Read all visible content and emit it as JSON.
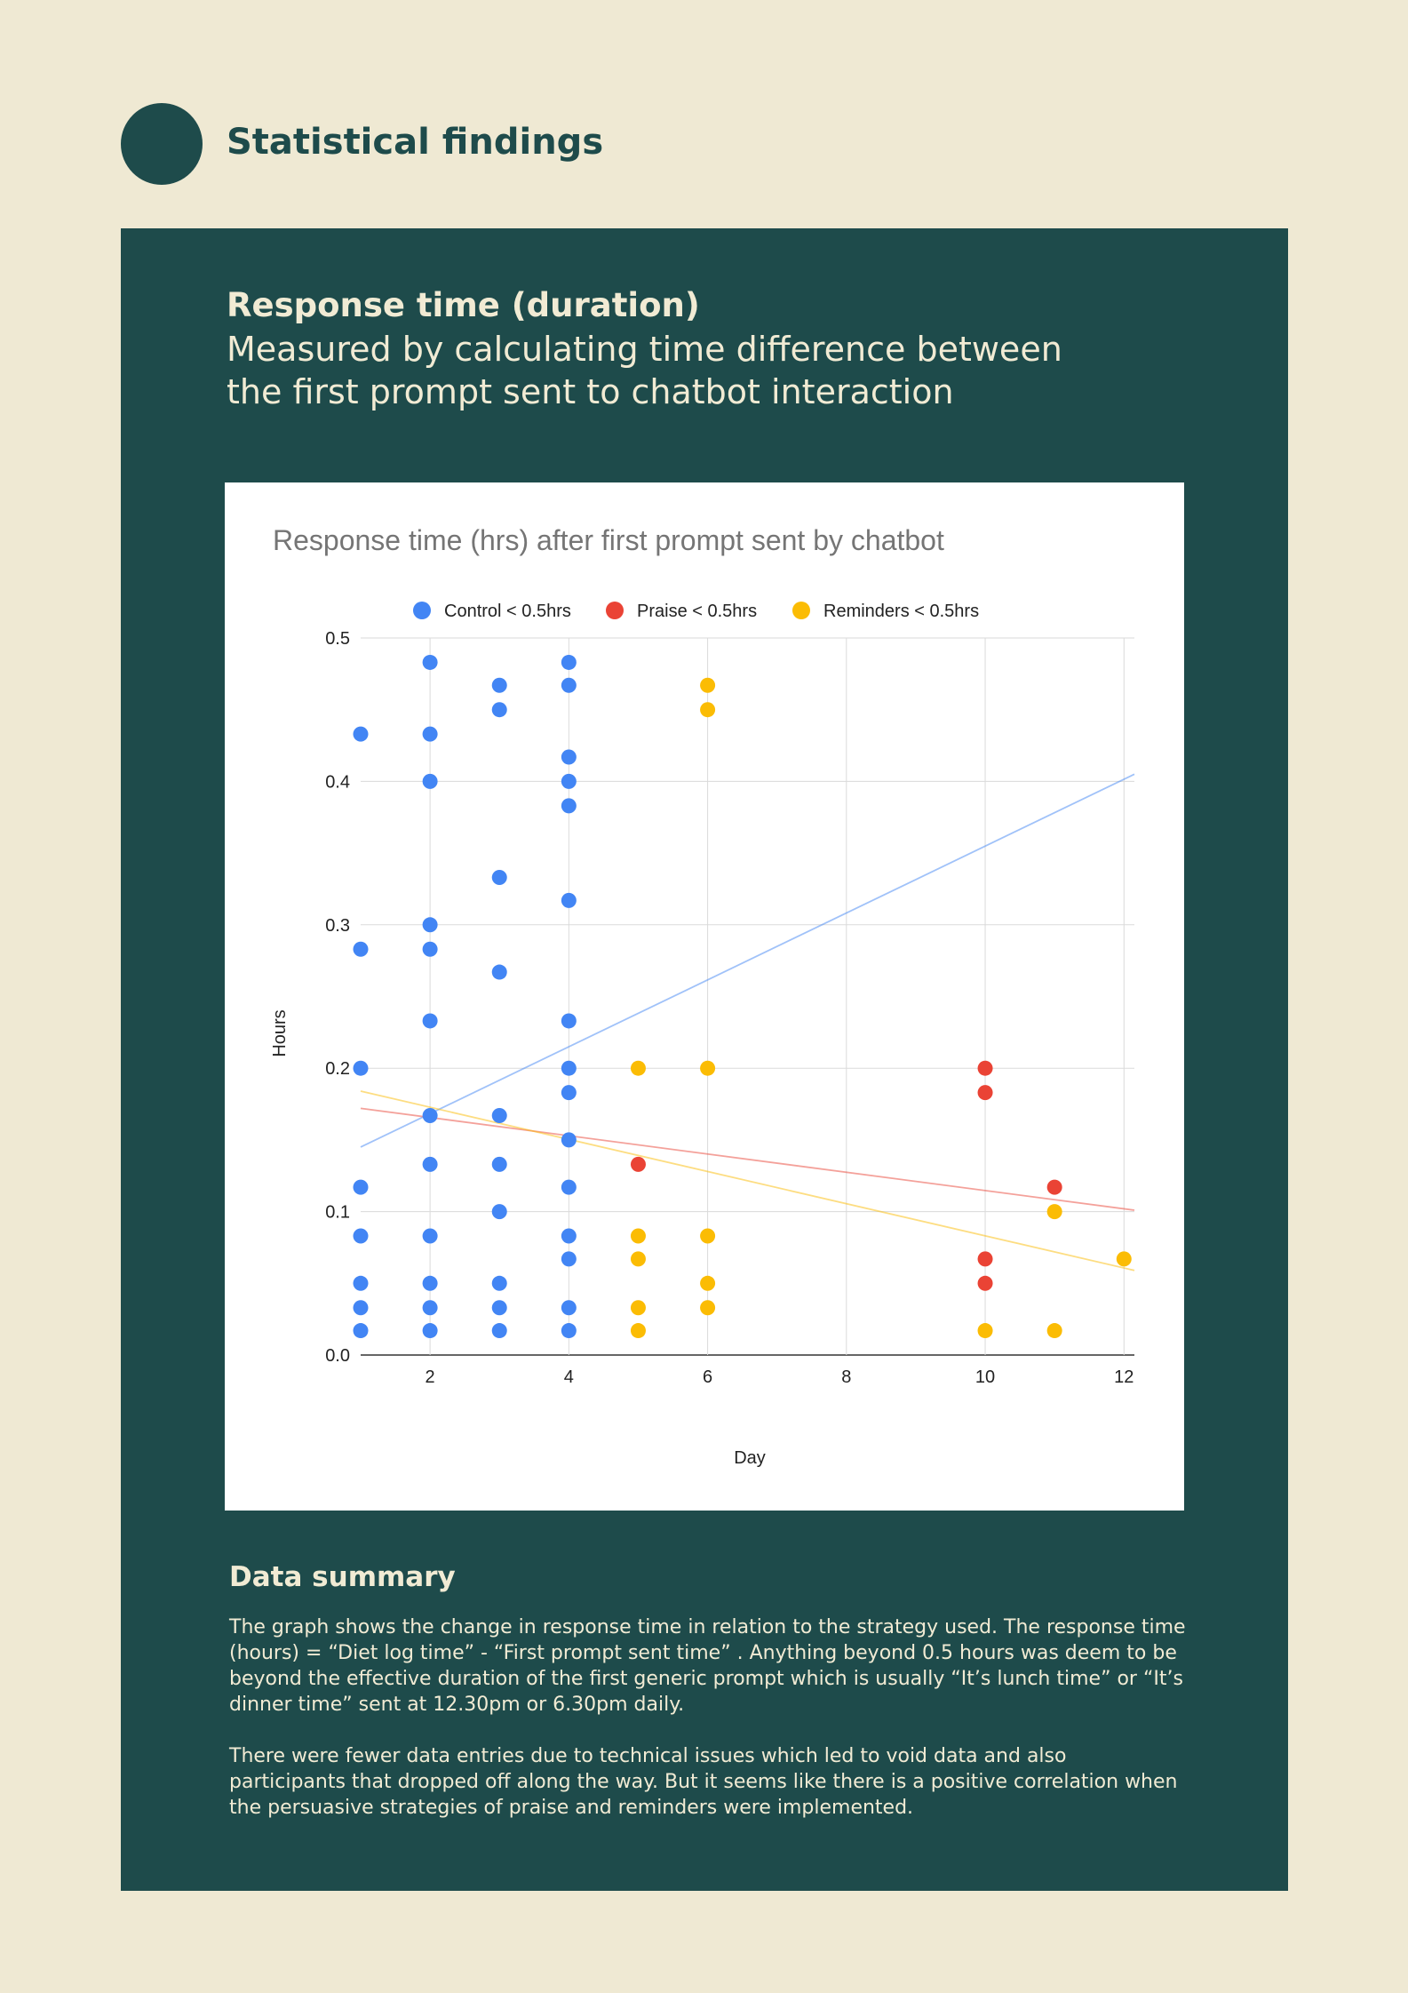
{
  "header": {
    "title": "Statistical findings"
  },
  "section": {
    "title": "Response time (duration)",
    "subtitle": "Measured by calculating time difference between the first prompt sent to chatbot interaction"
  },
  "chart_data": {
    "type": "scatter",
    "title": "Response time (hrs) after first prompt sent by chatbot",
    "xlabel": "Day",
    "ylabel": "Hours",
    "xlim": [
      1,
      12.15
    ],
    "ylim": [
      0,
      0.5
    ],
    "xticks": [
      2,
      4,
      6,
      8,
      10,
      12
    ],
    "yticks": [
      0.0,
      0.1,
      0.2,
      0.3,
      0.4,
      0.5
    ],
    "tick_labels_x": [
      "2",
      "4",
      "6",
      "8",
      "10",
      "12"
    ],
    "tick_labels_y": [
      "0.0",
      "0.1",
      "0.2",
      "0.3",
      "0.4",
      "0.5"
    ],
    "grid": true,
    "legend_position": "top",
    "series": [
      {
        "name": "Control < 0.5hrs",
        "color": "#4285F4",
        "points": [
          [
            1,
            0.433
          ],
          [
            1,
            0.283
          ],
          [
            1,
            0.2
          ],
          [
            1,
            0.117
          ],
          [
            1,
            0.083
          ],
          [
            1,
            0.05
          ],
          [
            1,
            0.033
          ],
          [
            1,
            0.017
          ],
          [
            2,
            0.483
          ],
          [
            2,
            0.433
          ],
          [
            2,
            0.4
          ],
          [
            2,
            0.3
          ],
          [
            2,
            0.283
          ],
          [
            2,
            0.233
          ],
          [
            2,
            0.167
          ],
          [
            2,
            0.133
          ],
          [
            2,
            0.083
          ],
          [
            2,
            0.05
          ],
          [
            2,
            0.033
          ],
          [
            2,
            0.017
          ],
          [
            3,
            0.467
          ],
          [
            3,
            0.45
          ],
          [
            3,
            0.333
          ],
          [
            3,
            0.267
          ],
          [
            3,
            0.167
          ],
          [
            3,
            0.133
          ],
          [
            3,
            0.1
          ],
          [
            3,
            0.05
          ],
          [
            3,
            0.033
          ],
          [
            3,
            0.017
          ],
          [
            4,
            0.483
          ],
          [
            4,
            0.467
          ],
          [
            4,
            0.417
          ],
          [
            4,
            0.4
          ],
          [
            4,
            0.383
          ],
          [
            4,
            0.317
          ],
          [
            4,
            0.233
          ],
          [
            4,
            0.2
          ],
          [
            4,
            0.183
          ],
          [
            4,
            0.15
          ],
          [
            4,
            0.117
          ],
          [
            4,
            0.083
          ],
          [
            4,
            0.067
          ],
          [
            4,
            0.033
          ],
          [
            4,
            0.017
          ]
        ],
        "trendline": [
          [
            1,
            0.145
          ],
          [
            12.15,
            0.405
          ]
        ]
      },
      {
        "name": "Praise < 0.5hrs",
        "color": "#EA4335",
        "points": [
          [
            5,
            0.133
          ],
          [
            10,
            0.2
          ],
          [
            10,
            0.183
          ],
          [
            10,
            0.067
          ],
          [
            10,
            0.05
          ],
          [
            11,
            0.117
          ]
        ],
        "trendline": [
          [
            1,
            0.172
          ],
          [
            12.15,
            0.101
          ]
        ]
      },
      {
        "name": "Reminders < 0.5hrs",
        "color": "#FBBC04",
        "points": [
          [
            5,
            0.2
          ],
          [
            5,
            0.083
          ],
          [
            5,
            0.067
          ],
          [
            5,
            0.033
          ],
          [
            5,
            0.017
          ],
          [
            6,
            0.467
          ],
          [
            6,
            0.45
          ],
          [
            6,
            0.2
          ],
          [
            6,
            0.083
          ],
          [
            6,
            0.05
          ],
          [
            6,
            0.033
          ],
          [
            10,
            0.017
          ],
          [
            11,
            0.1
          ],
          [
            11,
            0.017
          ],
          [
            12,
            0.067
          ]
        ],
        "trendline": [
          [
            1,
            0.184
          ],
          [
            12.15,
            0.059
          ]
        ]
      }
    ]
  },
  "summary": {
    "title": "Data summary",
    "paragraph1": "The graph shows the change in response time in relation to the strategy used. The response time (hours) = “Diet log time” - “First prompt sent time” . Anything beyond 0.5 hours was deem to be beyond the effective duration of the first generic prompt which is usually “It’s lunch time” or “It’s dinner time” sent at 12.30pm or 6.30pm daily.",
    "paragraph2": "There were fewer data entries due to technical issues which led to void data and also participants that dropped off along the way. But it seems like there is a positive correlation when the persuasive strategies of praise and reminders were implemented."
  }
}
